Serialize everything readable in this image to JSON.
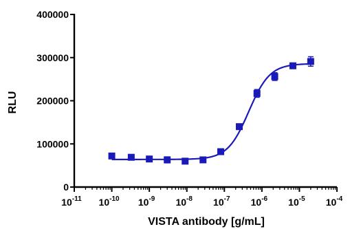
{
  "chart_data": {
    "type": "scatter",
    "xlabel": "VISTA antibody [g/mL]",
    "ylabel": "RLU",
    "x_scale": "log",
    "xlim": [
      1e-11,
      0.0001
    ],
    "ylim": [
      0,
      400000
    ],
    "x_tick_exponents": [
      "-11",
      "-10",
      "-9",
      "-8",
      "-7",
      "-6",
      "-5",
      "-4"
    ],
    "x_tick_base": "10",
    "y_ticks": [
      "0",
      "100000",
      "200000",
      "300000",
      "400000"
    ],
    "grid": false,
    "legend": "none",
    "series": [
      {
        "color": "#1a1ab8",
        "marker": "square",
        "fit": "sigmoidal dose-response",
        "points": [
          {
            "x": 1e-10,
            "y": 72000,
            "err": 6000
          },
          {
            "x": 3.3e-10,
            "y": 69000,
            "err": 3000
          },
          {
            "x": 1e-09,
            "y": 65000,
            "err": 2500
          },
          {
            "x": 3e-09,
            "y": 63000,
            "err": 7000
          },
          {
            "x": 9e-09,
            "y": 60000,
            "err": 4500
          },
          {
            "x": 2.7e-08,
            "y": 63000,
            "err": 3000
          },
          {
            "x": 8e-08,
            "y": 82000,
            "err": 4000
          },
          {
            "x": 2.5e-07,
            "y": 140000,
            "err": 6000
          },
          {
            "x": 7.4e-07,
            "y": 217000,
            "err": 9000
          },
          {
            "x": 2.2e-06,
            "y": 256000,
            "err": 9000
          },
          {
            "x": 6.7e-06,
            "y": 281000,
            "err": 4000
          },
          {
            "x": 2e-05,
            "y": 291000,
            "err": 11000
          }
        ]
      }
    ],
    "fit_curve": {
      "bottom": 64000,
      "top": 286000,
      "log_ec50": -6.35,
      "hill": 1.55
    }
  }
}
